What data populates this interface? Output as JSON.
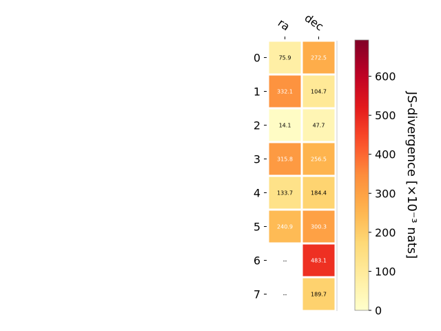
{
  "chart_data": {
    "type": "heatmap",
    "columns": [
      "ra",
      "dec"
    ],
    "rows": [
      "0",
      "1",
      "2",
      "3",
      "4",
      "5",
      "6",
      "7"
    ],
    "values": [
      [
        75.9,
        272.5
      ],
      [
        332.1,
        104.7
      ],
      [
        14.1,
        47.7
      ],
      [
        315.8,
        256.5
      ],
      [
        133.7,
        184.4
      ],
      [
        240.9,
        300.3
      ],
      [
        null,
        483.1
      ],
      [
        null,
        189.7
      ]
    ],
    "cell_labels": [
      [
        "75.9",
        "272.5"
      ],
      [
        "332.1",
        "104.7"
      ],
      [
        "14.1",
        "47.7"
      ],
      [
        "315.8",
        "256.5"
      ],
      [
        "133.7",
        "184.4"
      ],
      [
        "240.9",
        "300.3"
      ],
      [
        "--",
        "483.1"
      ],
      [
        "--",
        "189.7"
      ]
    ],
    "colormap": "YlOrRd",
    "colorbar": {
      "label": "JS-divergence [×10⁻³ nats]",
      "range": [
        0,
        693
      ],
      "ticks": [
        0,
        100,
        200,
        300,
        400,
        500,
        600
      ]
    }
  }
}
